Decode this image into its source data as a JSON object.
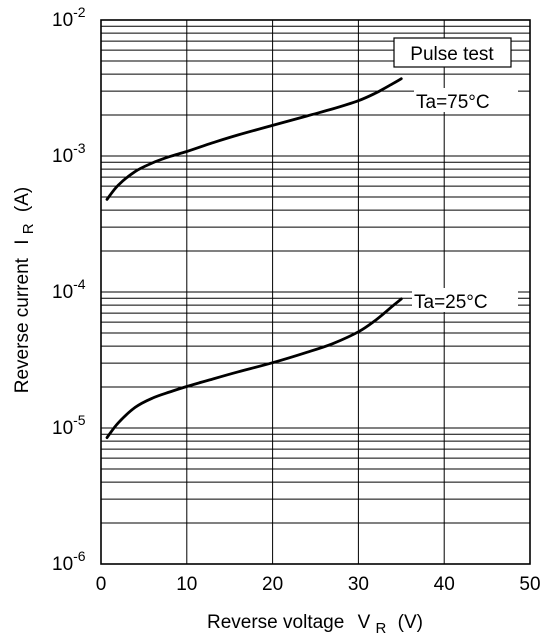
{
  "chart_data": {
    "type": "line",
    "title": "",
    "xlabel": "Reverse voltage",
    "xlabel_symbol": "V",
    "xlabel_sub": "R",
    "xlabel_unit": "(V)",
    "ylabel": "Reverse current",
    "ylabel_symbol": "I",
    "ylabel_sub": "R",
    "ylabel_unit": "(A)",
    "xlim": [
      0,
      50
    ],
    "ylim": [
      1e-06,
      0.01
    ],
    "yscale": "log",
    "x_ticks": [
      0,
      10,
      20,
      30,
      40,
      50
    ],
    "x_tick_labels": [
      "0",
      "10",
      "20",
      "30",
      "40",
      "50"
    ],
    "y_ticks": [
      {
        "base": "10",
        "exp": "-6",
        "value": 1e-06
      },
      {
        "base": "10",
        "exp": "-5",
        "value": 1e-05
      },
      {
        "base": "10",
        "exp": "-4",
        "value": 0.0001
      },
      {
        "base": "10",
        "exp": "-3",
        "value": 0.001
      },
      {
        "base": "10",
        "exp": "-2",
        "value": 0.01
      }
    ],
    "grid": true,
    "legend_note": "Pulse test",
    "series": [
      {
        "name": "Ta=75°C",
        "x": [
          0.7,
          2,
          4,
          6,
          8,
          10,
          13,
          16,
          20,
          24,
          27,
          30,
          32,
          34,
          35
        ],
        "y": [
          0.00048,
          0.00061,
          0.00077,
          0.00089,
          0.00099,
          0.00108,
          0.00125,
          0.00143,
          0.00168,
          0.00197,
          0.00222,
          0.00255,
          0.0029,
          0.0034,
          0.0037
        ]
      },
      {
        "name": "Ta=25°C",
        "x": [
          0.7,
          2,
          4,
          6,
          8,
          10,
          13,
          16,
          20,
          24,
          27,
          30,
          32,
          34,
          35
        ],
        "y": [
          8.5e-06,
          1.09e-05,
          1.42e-05,
          1.66e-05,
          1.84e-05,
          2.02e-05,
          2.29e-05,
          2.59e-05,
          3.02e-05,
          3.6e-05,
          4.17e-05,
          5.1e-05,
          6.2e-05,
          7.9e-05,
          8.9e-05
        ]
      }
    ]
  }
}
